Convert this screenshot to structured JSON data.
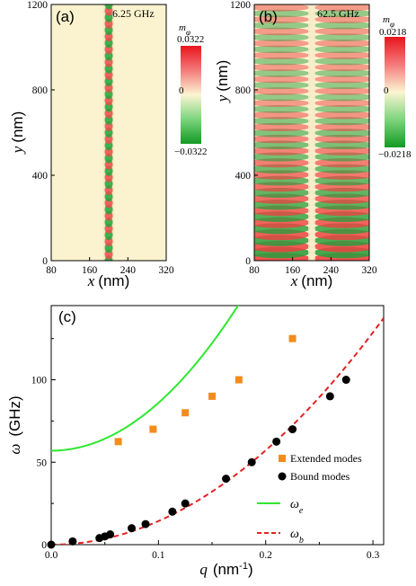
{
  "chart_data": [
    {
      "panel": "(a)",
      "type": "heatmap",
      "annotation": "6.25 GHz",
      "xlabel": "x (nm)",
      "ylabel": "y (nm)",
      "xlim": [
        80,
        320
      ],
      "ylim": [
        0,
        1200
      ],
      "xticks": [
        "80",
        "160",
        "240",
        "320"
      ],
      "yticks": [
        "0",
        "400",
        "800",
        "1200"
      ],
      "colorbar": {
        "label": "m",
        "subscript": "φ",
        "max": "0.0322",
        "mid": "0",
        "min": "−0.0322"
      },
      "description_values": {
        "x_center": 200,
        "stripe_period": 60
      }
    },
    {
      "panel": "(b)",
      "type": "heatmap",
      "annotation": "62.5 GHz",
      "xlabel": "x (nm)",
      "ylabel": "y (nm)",
      "xlim": [
        80,
        320
      ],
      "ylim": [
        0,
        1200
      ],
      "xticks": [
        "80",
        "160",
        "240",
        "320"
      ],
      "yticks": [
        "0",
        "400",
        "800",
        "1200"
      ],
      "colorbar": {
        "label": "m",
        "subscript": "φ",
        "max": "0.0218",
        "mid": "0",
        "min": "−0.0218"
      }
    },
    {
      "panel": "(c)",
      "type": "scatter",
      "xlabel": "q",
      "xlabel_unit": "(nm",
      "xlabel_exp": "-1",
      "xlabel_close": ")",
      "ylabel": "ω",
      "ylabel_unit": "(GHz)",
      "xlim": [
        0,
        0.31
      ],
      "ylim": [
        0,
        145
      ],
      "xticks": [
        "0.0",
        "0.1",
        "0.2",
        "0.3"
      ],
      "yticks": [
        "0",
        "50",
        "100"
      ],
      "series": [
        {
          "name": "Extended modes",
          "marker": "square",
          "color": "#f28c1e",
          "x": [
            0.0625,
            0.095,
            0.125,
            0.15,
            0.175,
            0.225
          ],
          "y": [
            62.5,
            70,
            80,
            90,
            100,
            125
          ]
        },
        {
          "name": "Bound modes",
          "marker": "circle",
          "color": "#000000",
          "x": [
            0.0,
            0.02,
            0.045,
            0.05,
            0.055,
            0.075,
            0.088,
            0.113,
            0.125,
            0.163,
            0.187,
            0.21,
            0.225,
            0.26,
            0.275
          ],
          "y": [
            0,
            2,
            4,
            5,
            6.25,
            10,
            12.5,
            20,
            25,
            40,
            50,
            62.5,
            70,
            90,
            100
          ]
        },
        {
          "name": "ω_e",
          "label_main": "ω",
          "label_sub": "e",
          "line": "solid",
          "color": "#2ee82e",
          "omega0": 57,
          "coef": 2900
        },
        {
          "name": "ω_b",
          "label_main": "ω",
          "label_sub": "b",
          "line": "dashed",
          "color": "#e32222",
          "coef": 1430
        }
      ]
    }
  ]
}
